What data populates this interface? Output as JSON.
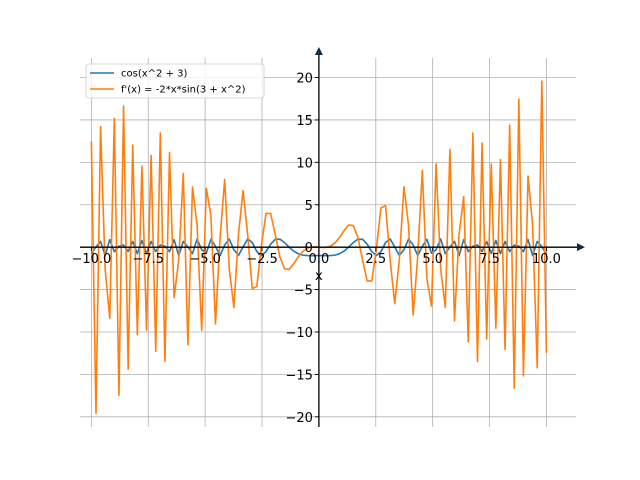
{
  "chart_data": {
    "type": "line",
    "xlabel": "x",
    "ylabel": "",
    "xlim": [
      -10.5,
      11.3
    ],
    "ylim": [
      -21.2,
      22.3
    ],
    "grid": true,
    "legend": "top-left",
    "x_ticks": [
      -10.0,
      -7.5,
      -5.0,
      -2.5,
      0.0,
      2.5,
      5.0,
      7.5,
      10.0
    ],
    "x_tick_labels": [
      "−10.0",
      "−7.5",
      "−5.0",
      "−2.5",
      "0.0",
      "2.5",
      "5.0",
      "7.5",
      "10.0"
    ],
    "y_ticks": [
      -20,
      -15,
      -10,
      -5,
      0,
      5,
      10,
      15,
      20
    ],
    "y_tick_labels": [
      "−20",
      "−15",
      "−10",
      "−5",
      "0",
      "5",
      "10",
      "15",
      "20"
    ],
    "x_range": [
      -10,
      10
    ],
    "sample_count": 100,
    "series": [
      {
        "name": "cos(x^2 + 3)",
        "color": "#1f77b4",
        "function": "cos(x^2 + 3)"
      },
      {
        "name": "f'(x) = -2*x*sin(3 + x^2)",
        "color": "#ff7f0e",
        "function": "-2*x*sin(3 + x^2)"
      }
    ]
  }
}
